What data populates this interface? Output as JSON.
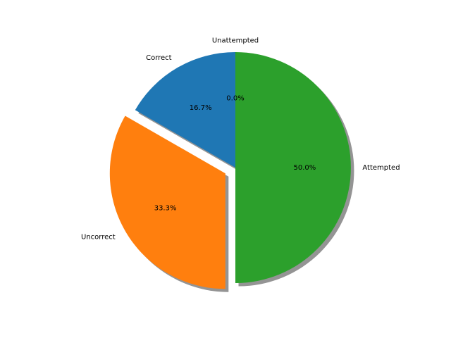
{
  "chart_data": {
    "type": "pie",
    "start_angle_deg": 90,
    "counterclock": true,
    "shadow": true,
    "slices": [
      {
        "label": "Correct",
        "value": 16.7,
        "pct_label": "16.7%",
        "color": "#1f77b4",
        "explode": 0.0
      },
      {
        "label": "Uncorrect",
        "value": 33.3,
        "pct_label": "33.3%",
        "color": "#ff7f0e",
        "explode": 0.1
      },
      {
        "label": "Attempted",
        "value": 50.0,
        "pct_label": "50.0%",
        "color": "#2ca02c",
        "explode": 0.0
      },
      {
        "label": "Unattempted",
        "value": 0.0,
        "pct_label": "0.0%",
        "color": "#d62728",
        "explode": 0.0
      }
    ]
  }
}
